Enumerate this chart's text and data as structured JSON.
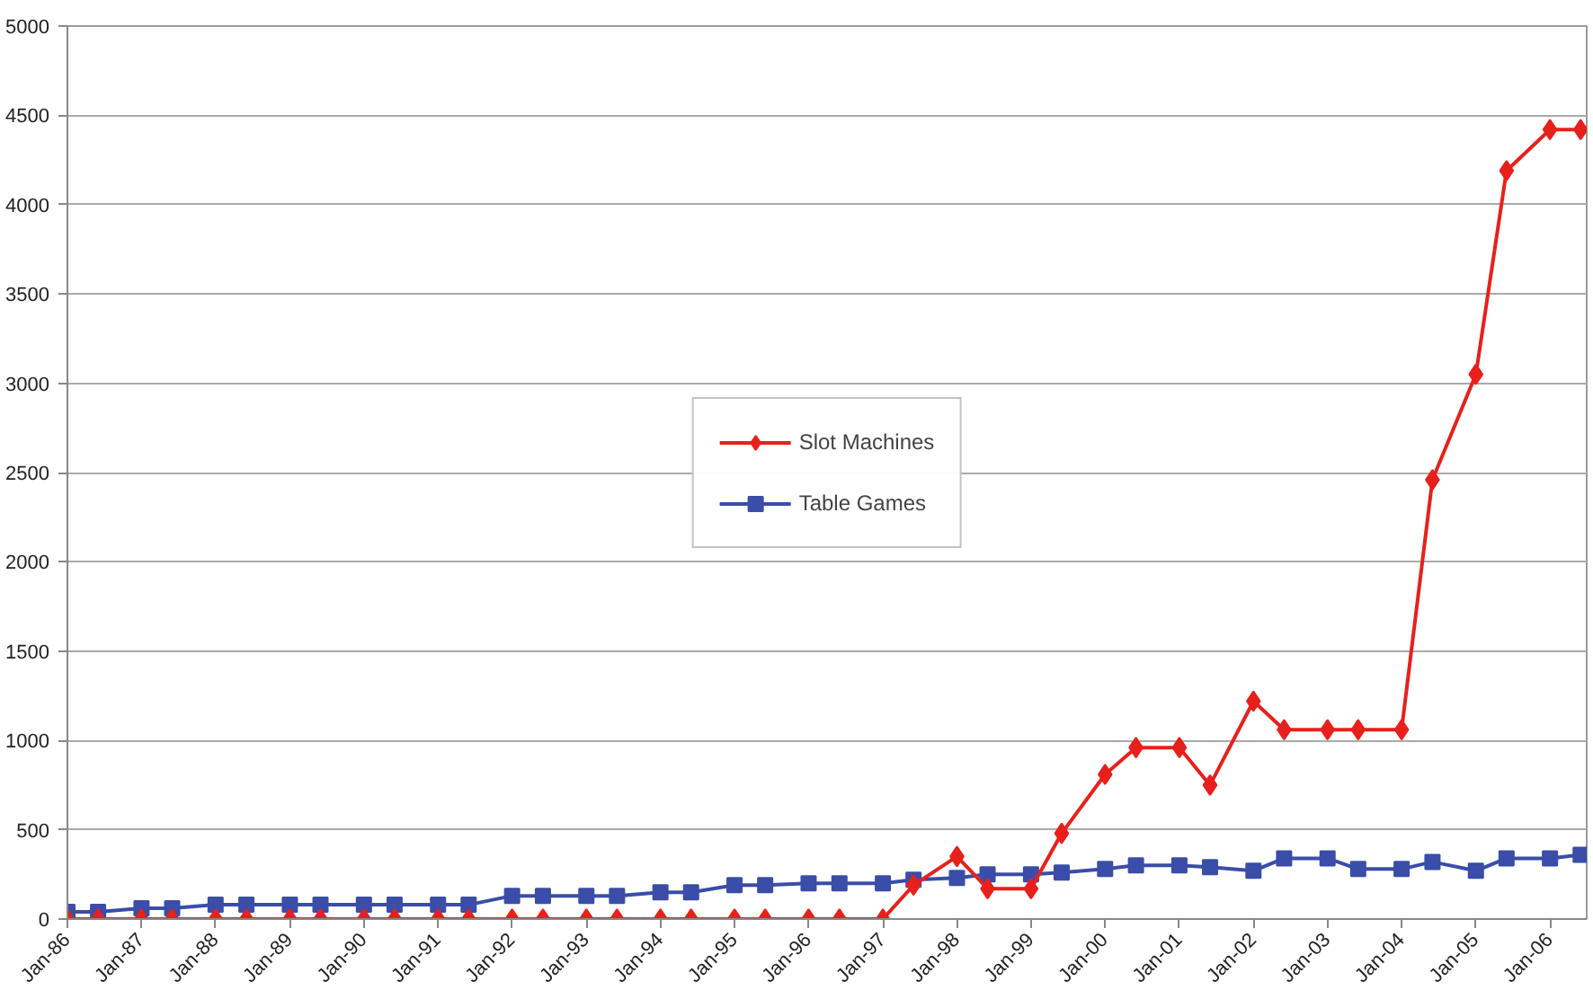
{
  "chart_data": {
    "type": "line",
    "x": [
      "1986-01",
      "1986-06",
      "1987-01",
      "1987-06",
      "1988-01",
      "1988-06",
      "1989-01",
      "1989-06",
      "1990-01",
      "1990-06",
      "1991-01",
      "1991-06",
      "1992-01",
      "1992-06",
      "1993-01",
      "1993-06",
      "1994-01",
      "1994-06",
      "1995-01",
      "1995-06",
      "1996-01",
      "1996-06",
      "1997-01",
      "1997-06",
      "1998-01",
      "1998-06",
      "1999-01",
      "1999-06",
      "2000-01",
      "2000-06",
      "2001-01",
      "2001-06",
      "2002-01",
      "2002-06",
      "2003-01",
      "2003-06",
      "2004-01",
      "2004-06",
      "2005-01",
      "2005-06",
      "2006-01",
      "2006-06"
    ],
    "series": [
      {
        "name": "Slot Machines",
        "color": "#e8201c",
        "marker": "diamond",
        "values": [
          0,
          0,
          0,
          0,
          0,
          0,
          0,
          0,
          0,
          0,
          0,
          0,
          0,
          0,
          0,
          0,
          0,
          0,
          0,
          0,
          0,
          0,
          0,
          190,
          350,
          170,
          170,
          480,
          810,
          960,
          960,
          750,
          1220,
          1060,
          1060,
          1060,
          1060,
          2460,
          3050,
          4190,
          4420,
          4420
        ]
      },
      {
        "name": "Table Games",
        "color": "#3a4da8",
        "marker": "square",
        "values": [
          40,
          40,
          60,
          60,
          80,
          80,
          80,
          80,
          80,
          80,
          80,
          80,
          130,
          130,
          130,
          130,
          150,
          150,
          190,
          190,
          200,
          200,
          200,
          220,
          230,
          250,
          250,
          260,
          280,
          300,
          300,
          290,
          270,
          340,
          340,
          280,
          280,
          320,
          270,
          340,
          340,
          360
        ]
      }
    ],
    "xlim": [
      "1986-01",
      "2006-07"
    ],
    "xticks": [
      {
        "value": "1986-01",
        "label": "Jan-86"
      },
      {
        "value": "1987-01",
        "label": "Jan-87"
      },
      {
        "value": "1988-01",
        "label": "Jan-88"
      },
      {
        "value": "1989-01",
        "label": "Jan-89"
      },
      {
        "value": "1990-01",
        "label": "Jan-90"
      },
      {
        "value": "1991-01",
        "label": "Jan-91"
      },
      {
        "value": "1992-01",
        "label": "Jan-92"
      },
      {
        "value": "1993-01",
        "label": "Jan-93"
      },
      {
        "value": "1994-01",
        "label": "Jan-94"
      },
      {
        "value": "1995-01",
        "label": "Jan-95"
      },
      {
        "value": "1996-01",
        "label": "Jan-96"
      },
      {
        "value": "1997-01",
        "label": "Jan-97"
      },
      {
        "value": "1998-01",
        "label": "Jan-98"
      },
      {
        "value": "1999-01",
        "label": "Jan-99"
      },
      {
        "value": "2000-01",
        "label": "Jan-00"
      },
      {
        "value": "2001-01",
        "label": "Jan-01"
      },
      {
        "value": "2002-01",
        "label": "Jan-02"
      },
      {
        "value": "2003-01",
        "label": "Jan-03"
      },
      {
        "value": "2004-01",
        "label": "Jan-04"
      },
      {
        "value": "2005-01",
        "label": "Jan-05"
      },
      {
        "value": "2006-01",
        "label": "Jan-06"
      }
    ],
    "ylim": [
      0,
      5000
    ],
    "yticks": [
      0,
      500,
      1000,
      1500,
      2000,
      2500,
      3000,
      3500,
      4000,
      4500,
      5000
    ],
    "grid": "y",
    "legend": "center"
  }
}
